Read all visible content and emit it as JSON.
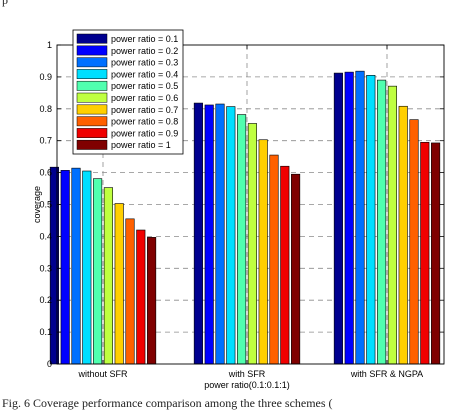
{
  "top_fragment": "p",
  "caption": "Fig. 6 Coverage performance comparison among the three schemes (",
  "chart_data": {
    "type": "bar",
    "ylabel": "coverage",
    "xlabel": "",
    "ylim": [
      0,
      1
    ],
    "yticks": [
      "0",
      "0.1",
      "0.2",
      "0.3",
      "0.4",
      "0.5",
      "0.6",
      "0.7",
      "0.8",
      "0.9",
      "1"
    ],
    "ytick_values": [
      0,
      0.1,
      0.2,
      0.3,
      0.4,
      0.5,
      0.6,
      0.7,
      0.8,
      0.9,
      1
    ],
    "grid": true,
    "legend_position": "top-left",
    "categories": [
      {
        "line1": "without SFR",
        "line2": ""
      },
      {
        "line1": "with SFR",
        "line2": "power ratio(0.1:0.1:1)"
      },
      {
        "line1": "with SFR & NGPA",
        "line2": ""
      }
    ],
    "series": [
      {
        "name": "power ratio = 0.1",
        "color": "#00008f",
        "values": [
          0.617,
          0.818,
          0.912
        ]
      },
      {
        "name": "power ratio = 0.2",
        "color": "#0000ff",
        "values": [
          0.607,
          0.812,
          0.915
        ]
      },
      {
        "name": "power ratio = 0.3",
        "color": "#0070ff",
        "values": [
          0.614,
          0.815,
          0.918
        ]
      },
      {
        "name": "power ratio = 0.4",
        "color": "#00dfff",
        "values": [
          0.605,
          0.807,
          0.905
        ]
      },
      {
        "name": "power ratio = 0.5",
        "color": "#50ffaf",
        "values": [
          0.581,
          0.782,
          0.89
        ]
      },
      {
        "name": "power ratio = 0.6",
        "color": "#bfff40",
        "values": [
          0.553,
          0.754,
          0.871
        ]
      },
      {
        "name": "power ratio = 0.7",
        "color": "#ffcf00",
        "values": [
          0.503,
          0.703,
          0.808
        ]
      },
      {
        "name": "power ratio = 0.8",
        "color": "#ff6000",
        "values": [
          0.455,
          0.655,
          0.766
        ]
      },
      {
        "name": "power ratio = 0.9",
        "color": "#f00000",
        "values": [
          0.42,
          0.62,
          0.695
        ]
      },
      {
        "name": "power ratio = 1",
        "color": "#800000",
        "values": [
          0.397,
          0.595,
          0.693
        ]
      }
    ]
  }
}
